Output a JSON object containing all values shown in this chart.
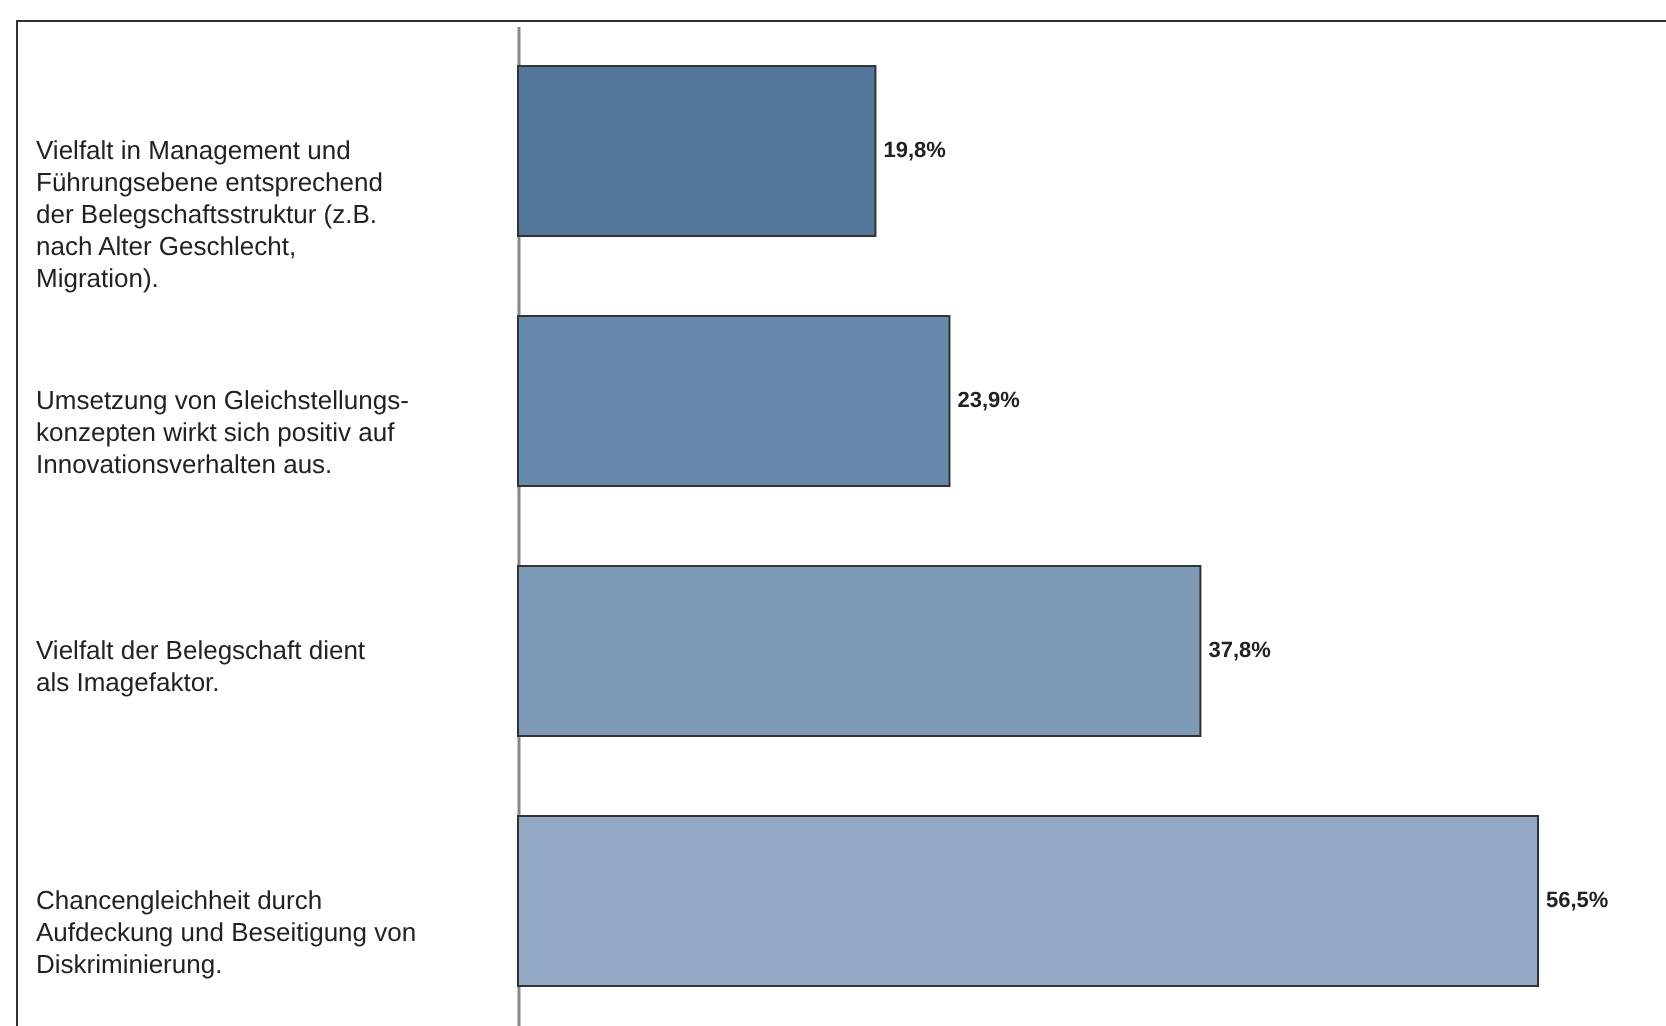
{
  "chart_data": {
    "type": "bar",
    "orientation": "horizontal",
    "categories": [
      "Vielfalt in Management und\nFührungsebene entsprechend\nder Belegschaftsstruktur (z.B.\nnach Alter Geschlecht,\nMigration).",
      "Umsetzung von Gleichstellungs-\nkonzepten wirkt sich positiv auf\nInnovationsverhalten aus.",
      "Vielfalt der Belegschaft dient\nals Imagefaktor.",
      "Chancengleichheit durch\nAufdeckung und Beseitigung von\nDiskriminierung."
    ],
    "values": [
      19.8,
      23.9,
      37.8,
      56.5
    ],
    "colors": [
      "#52779a",
      "#6789ab",
      "#7f9ab7",
      "#93a9c5"
    ],
    "value_labels": [
      "19,8%",
      "23,9%",
      "37,8%",
      "56,5%"
    ]
  }
}
